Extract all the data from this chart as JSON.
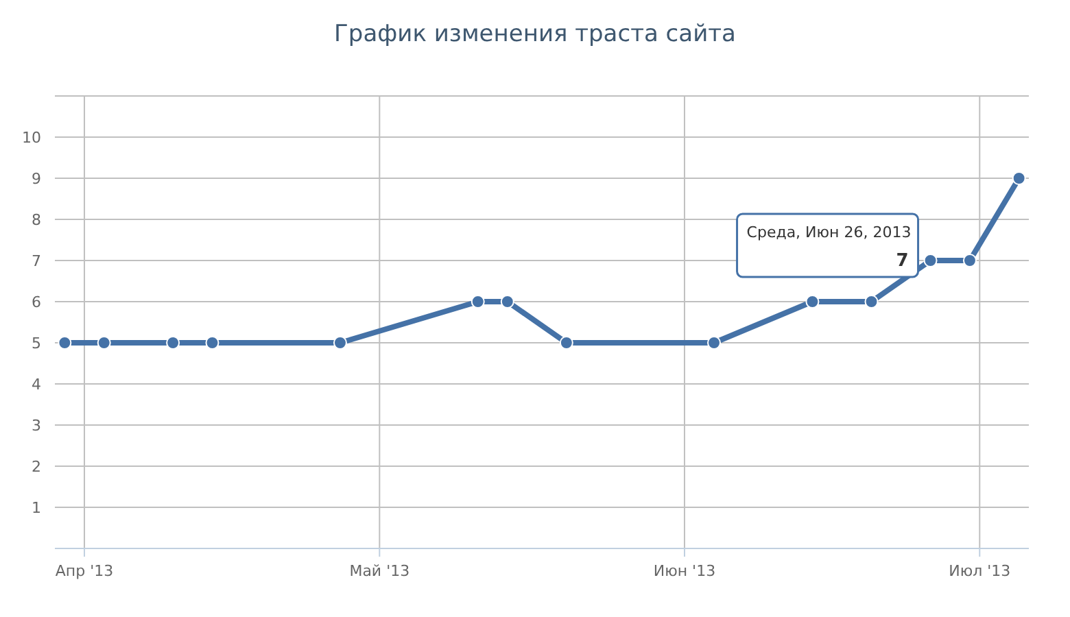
{
  "chart_data": {
    "type": "line",
    "title": "График изменения траста сайта",
    "x": [
      "2013-03-30",
      "2013-04-03",
      "2013-04-10",
      "2013-04-14",
      "2013-04-27",
      "2013-05-11",
      "2013-05-14",
      "2013-05-20",
      "2013-06-04",
      "2013-06-14",
      "2013-06-20",
      "2013-06-26",
      "2013-06-30",
      "2013-07-05"
    ],
    "series": [
      {
        "color": "#4572a7",
        "values": [
          5,
          5,
          5,
          5,
          5,
          6,
          6,
          5,
          5,
          6,
          6,
          7,
          7,
          9
        ],
        "value_labels": [
          null,
          null,
          null,
          null,
          null,
          null,
          null,
          null,
          null,
          null,
          null,
          "7",
          null,
          null
        ]
      }
    ],
    "xlim": [
      "2013-03-29",
      "2013-07-06"
    ],
    "xticks": [
      {
        "value": "2013-04-01",
        "label": "Апр '13"
      },
      {
        "value": "2013-05-01",
        "label": "Май '13"
      },
      {
        "value": "2013-06-01",
        "label": "Июн '13"
      },
      {
        "value": "2013-07-01",
        "label": "Июл '13"
      }
    ],
    "ylim": [
      0,
      11
    ],
    "yticks": [
      {
        "value": 0,
        "label": null
      },
      1,
      2,
      3,
      4,
      5,
      6,
      7,
      8,
      9,
      10,
      {
        "value": 11,
        "label": null
      }
    ],
    "grid": true,
    "marker": "circle",
    "line_style": "solid",
    "annotations": [
      {
        "text": "Среда, Июн 26, 2013",
        "x": "2013-06-26",
        "y": 7
      }
    ]
  }
}
